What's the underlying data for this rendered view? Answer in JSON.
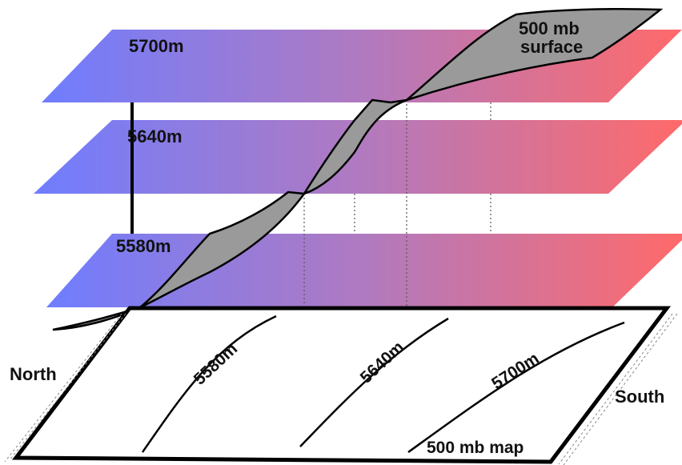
{
  "diagram": {
    "levels": [
      {
        "label": "5700m"
      },
      {
        "label": "5640m"
      },
      {
        "label": "5580m"
      }
    ],
    "surface_label_line1": "500 mb",
    "surface_label_line2": "surface",
    "contour_labels": [
      "5580m",
      "5640m",
      "5700m"
    ],
    "map_label": "500 mb map",
    "north_label": "North",
    "south_label": "South",
    "colors": {
      "cold": "#6f7dff",
      "mid": "#b07ac0",
      "warm": "#ff6a6a",
      "surface_fill": "#9a9a9a",
      "outline": "#000000"
    }
  }
}
